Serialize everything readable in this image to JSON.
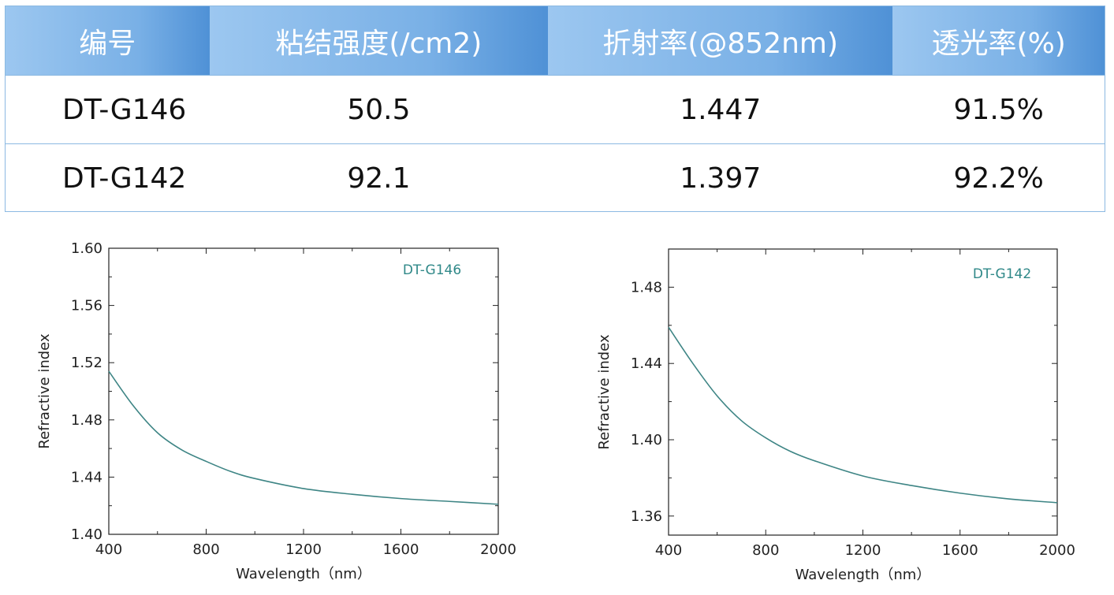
{
  "table": {
    "headers": [
      "编号",
      "粘结强度(/cm2)",
      "折射率(@852nm)",
      "透光率(%)"
    ],
    "rows": [
      [
        "DT-G146",
        "50.5",
        "1.447",
        "91.5%"
      ],
      [
        "DT-G142",
        "92.1",
        "1.397",
        "92.2%"
      ]
    ]
  },
  "colors": {
    "header_light": "#9cc7f0",
    "header_dark": "#4f91d6",
    "border": "#8cb9e2",
    "curve": "#3e8585",
    "legend_text": "#2f8888"
  },
  "chart_data": [
    {
      "type": "line",
      "title": "",
      "xlabel": "Wavelength（nm）",
      "ylabel": "Refractive index",
      "xlim": [
        400,
        2000
      ],
      "ylim": [
        1.4,
        1.6
      ],
      "xticks": [
        400,
        800,
        1200,
        1600,
        2000
      ],
      "yticks": [
        1.4,
        1.44,
        1.48,
        1.52,
        1.56,
        1.6
      ],
      "grid": false,
      "series": [
        {
          "name": "DT-G146",
          "x": [
            400,
            500,
            600,
            700,
            800,
            900,
            1000,
            1200,
            1400,
            1600,
            1800,
            2000
          ],
          "y": [
            1.514,
            1.49,
            1.471,
            1.459,
            1.451,
            1.444,
            1.439,
            1.432,
            1.428,
            1.425,
            1.423,
            1.421
          ]
        }
      ]
    },
    {
      "type": "line",
      "title": "",
      "xlabel": "Wavelength（nm）",
      "ylabel": "Refractive index",
      "xlim": [
        400,
        2000
      ],
      "ylim": [
        1.35,
        1.5
      ],
      "xticks": [
        400,
        800,
        1200,
        1600,
        2000
      ],
      "yticks": [
        1.36,
        1.4,
        1.44,
        1.48
      ],
      "grid": false,
      "series": [
        {
          "name": "DT-G142",
          "x": [
            400,
            500,
            600,
            700,
            800,
            900,
            1000,
            1200,
            1400,
            1600,
            1800,
            2000
          ],
          "y": [
            1.459,
            1.44,
            1.423,
            1.41,
            1.401,
            1.394,
            1.389,
            1.381,
            1.376,
            1.372,
            1.369,
            1.367
          ]
        }
      ]
    }
  ]
}
